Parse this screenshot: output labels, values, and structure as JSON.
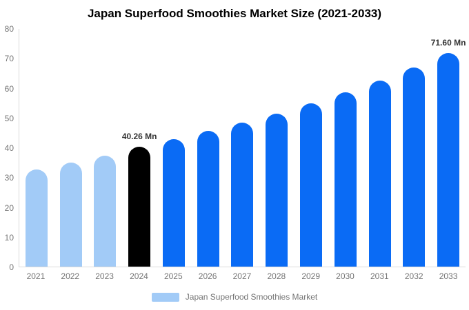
{
  "title": "Japan Superfood Smoothies Market Size (2021-2033)",
  "legend": {
    "label": "Japan Superfood Smoothies Market"
  },
  "colors": {
    "historical_bar": "#a2cbf7",
    "highlight_bar": "#000000",
    "forecast_bar": "#0a6bf5",
    "axis_line": "#d9d9d9",
    "tick_text": "#757575",
    "title_text": "#000000",
    "data_label_text": "#333333",
    "background": "#ffffff"
  },
  "chart_data": {
    "type": "bar",
    "title": "Japan Superfood Smoothies Market Size (2021-2033)",
    "xlabel": "",
    "ylabel": "",
    "unit": "Mn",
    "ylim": [
      0,
      80
    ],
    "yticks": [
      0,
      10,
      20,
      30,
      40,
      50,
      60,
      70,
      80
    ],
    "grid": false,
    "legend_position": "bottom",
    "categories": [
      "2021",
      "2022",
      "2023",
      "2024",
      "2025",
      "2026",
      "2027",
      "2028",
      "2029",
      "2030",
      "2031",
      "2032",
      "2033"
    ],
    "values": [
      32.7,
      34.9,
      37.3,
      40.26,
      42.7,
      45.5,
      48.4,
      51.3,
      54.9,
      58.6,
      62.4,
      66.8,
      71.6
    ],
    "segments": [
      "historical",
      "historical",
      "historical",
      "highlight",
      "forecast",
      "forecast",
      "forecast",
      "forecast",
      "forecast",
      "forecast",
      "forecast",
      "forecast",
      "forecast"
    ],
    "point_labels": [
      "",
      "",
      "",
      "40.26 Mn",
      "",
      "",
      "",
      "",
      "",
      "",
      "",
      "",
      "71.60 Mn"
    ]
  }
}
